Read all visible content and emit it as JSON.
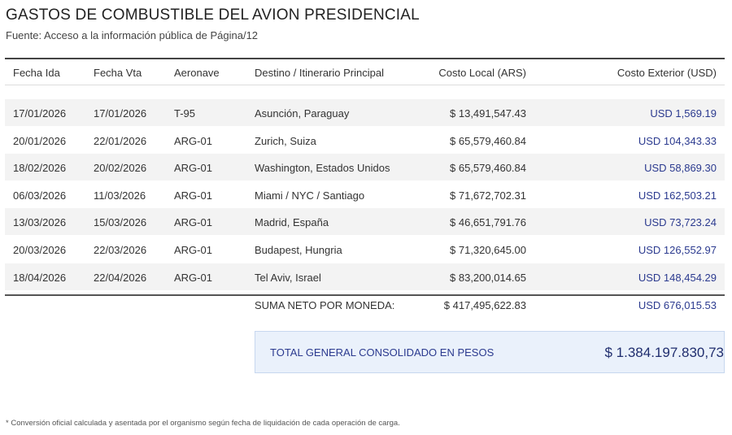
{
  "header": {
    "title": "GASTOS DE COMBUSTIBLE DEL AVION PRESIDENCIAL",
    "source": "Fuente: Acceso a la información pública de Página/12"
  },
  "table": {
    "columns": [
      "Fecha Ida",
      "Fecha Vta",
      "Aeronave",
      "Destino / Itinerario Principal",
      "Costo Local (ARS)",
      "Costo Exterior (USD)"
    ],
    "rows": [
      [
        "17/01/2026",
        "17/01/2026",
        "T-95",
        "Asunción, Paraguay",
        "$ 13,491,547.43",
        "USD 1,569.19"
      ],
      [
        "20/01/2026",
        "22/01/2026",
        "ARG-01",
        "Zurich, Suiza",
        "$ 65,579,460.84",
        "USD 104,343.33"
      ],
      [
        "18/02/2026",
        "20/02/2026",
        "ARG-01",
        "Washington, Estados Unidos",
        "$ 65,579,460.84",
        "USD 58,869.30"
      ],
      [
        "06/03/2026",
        "11/03/2026",
        "ARG-01",
        "Miami / NYC / Santiago",
        "$ 71,672,702.31",
        "USD 162,503.21"
      ],
      [
        "13/03/2026",
        "15/03/2026",
        "ARG-01",
        "Madrid, España",
        "$ 46,651,791.76",
        "USD 73,723.24"
      ],
      [
        "20/03/2026",
        "22/03/2026",
        "ARG-01",
        "Budapest, Hungria",
        "$ 71,320,645.00",
        "USD 126,552.97"
      ],
      [
        "18/04/2026",
        "22/04/2026",
        "ARG-01",
        "Tel Aviv, Israel",
        "$ 83,200,014.65",
        "USD 148,454.29"
      ]
    ],
    "summary": {
      "label": "SUMA NETO POR MONEDA:",
      "ars": "$ 417,495,622.83",
      "usd": "USD 676,015.53"
    }
  },
  "total": {
    "label": "TOTAL GENERAL CONSOLIDADO EN PESOS",
    "value": "$ 1.384.197.830,73"
  },
  "footnote": "* Conversión oficial calculada y asentada por el organismo según fecha de liquidación de cada operación de carga."
}
